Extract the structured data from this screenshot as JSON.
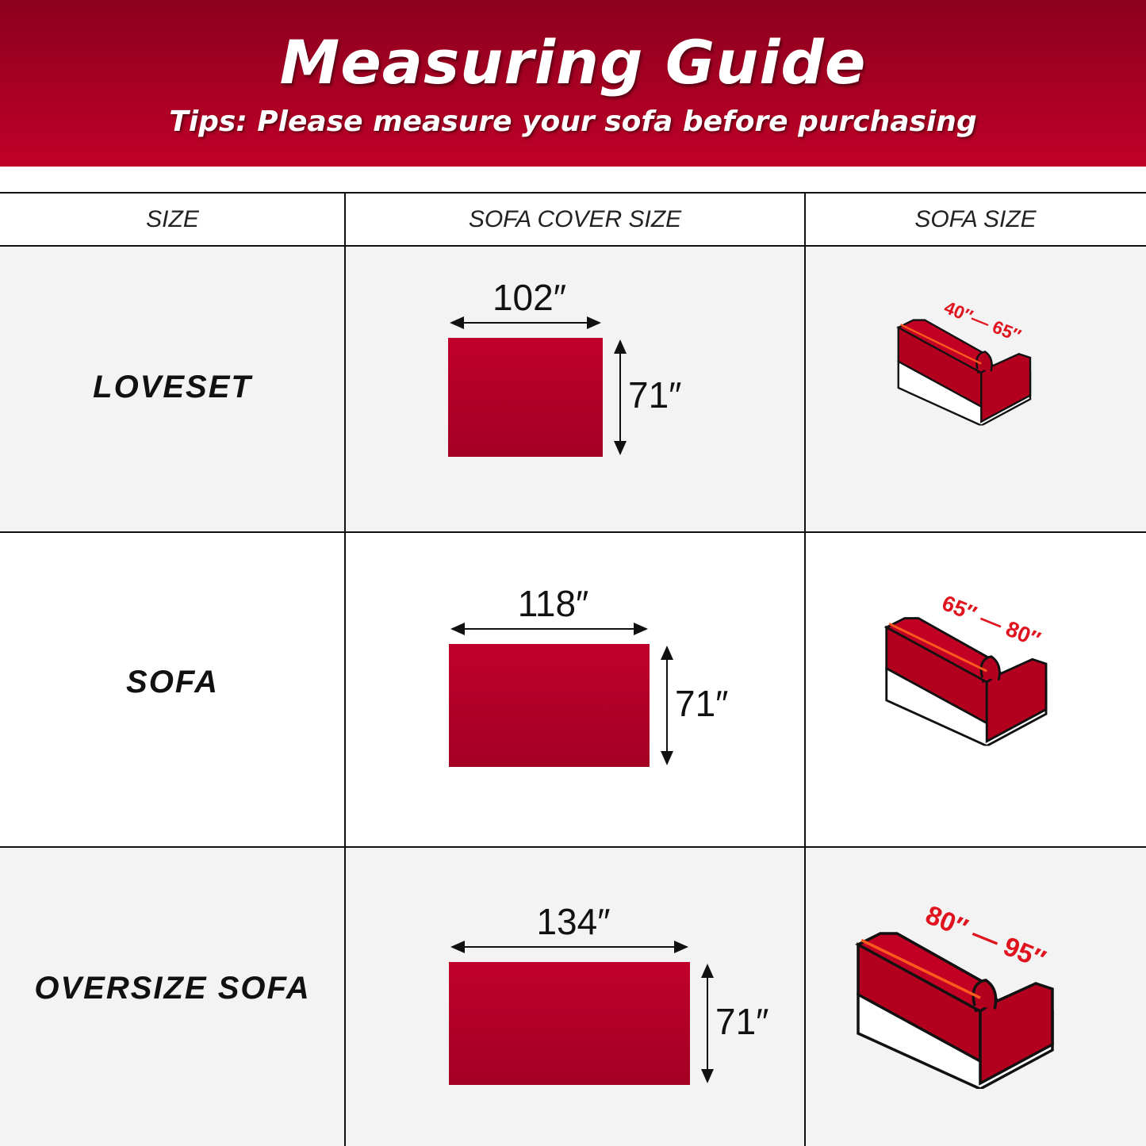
{
  "header": {
    "title": "Measuring Guide",
    "subtitle": "Tips:  Please measure your sofa before purchasing"
  },
  "table": {
    "columns": [
      "SIZE",
      "SOFA COVER SIZE",
      "SOFA SIZE"
    ],
    "rows": [
      {
        "size": "LOVESET",
        "cover_width": "102″",
        "cover_height": "71″",
        "sofa_range": "40″— 65″"
      },
      {
        "size": "SOFA",
        "cover_width": "118″",
        "cover_height": "71″",
        "sofa_range": "65″ —  80″"
      },
      {
        "size": "OVERSIZE SOFA",
        "cover_width": "134″",
        "cover_height": "71″",
        "sofa_range": "80″ —  95″"
      }
    ]
  },
  "colors": {
    "brand_red": "#b8002a",
    "header_top": "#8c001d",
    "measure_red": "#e0141e",
    "row_alt": "#f3f3f3"
  },
  "icons": [
    "sofa-icon"
  ]
}
